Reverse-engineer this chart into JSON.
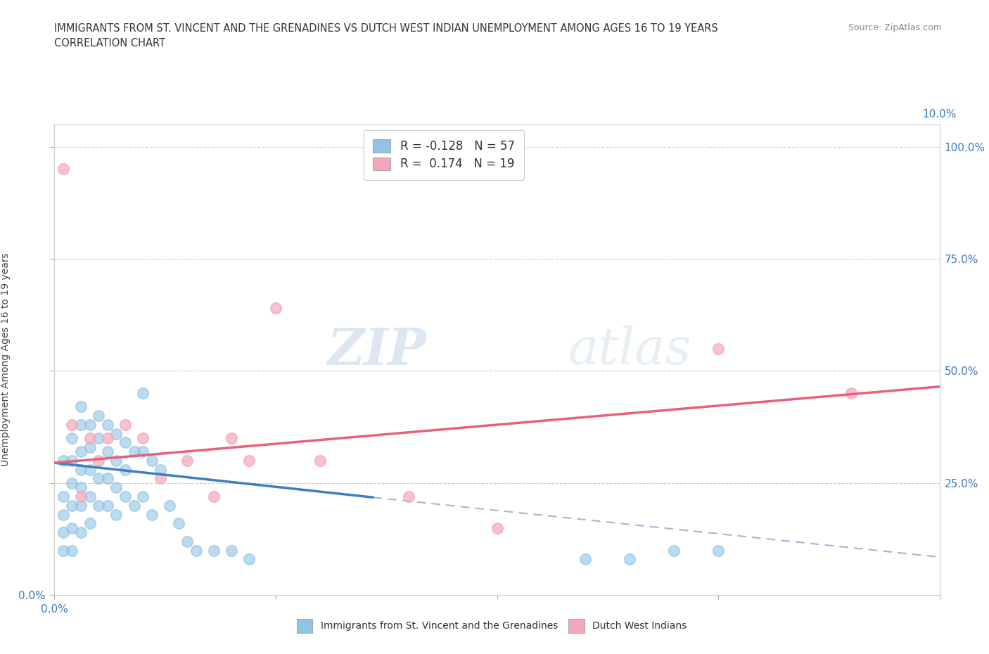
{
  "title_line1": "IMMIGRANTS FROM ST. VINCENT AND THE GRENADINES VS DUTCH WEST INDIAN UNEMPLOYMENT AMONG AGES 16 TO 19 YEARS",
  "title_line2": "CORRELATION CHART",
  "source_text": "Source: ZipAtlas.com",
  "ylabel": "Unemployment Among Ages 16 to 19 years",
  "xlim": [
    0.0,
    0.1
  ],
  "ylim": [
    0.0,
    1.05
  ],
  "xtick_vals": [
    0.0,
    0.025,
    0.05,
    0.075,
    0.1
  ],
  "xtick_labels": [
    "0.0%",
    "",
    "",
    "",
    ""
  ],
  "ytick_vals": [
    0.0,
    0.25,
    0.5,
    0.75,
    1.0
  ],
  "ytick_right_vals": [
    0.25,
    0.5,
    0.75,
    1.0
  ],
  "ytick_right_labels": [
    "25.0%",
    "50.0%",
    "75.0%",
    "100.0%"
  ],
  "blue_color": "#90c4e4",
  "pink_color": "#f4a7b9",
  "blue_line_color": "#3b7fc4",
  "pink_line_color": "#e8607a",
  "dashed_line_color": "#a0b8d0",
  "legend_R_blue": "R = -0.128",
  "legend_N_blue": "N = 57",
  "legend_R_pink": "R =  0.174",
  "legend_N_pink": "N = 19",
  "watermark_zip": "ZIP",
  "watermark_atlas": "atlas",
  "blue_scatter_x": [
    0.001,
    0.001,
    0.001,
    0.001,
    0.001,
    0.002,
    0.002,
    0.002,
    0.002,
    0.002,
    0.002,
    0.003,
    0.003,
    0.003,
    0.003,
    0.003,
    0.003,
    0.003,
    0.004,
    0.004,
    0.004,
    0.004,
    0.004,
    0.005,
    0.005,
    0.005,
    0.005,
    0.006,
    0.006,
    0.006,
    0.006,
    0.007,
    0.007,
    0.007,
    0.007,
    0.008,
    0.008,
    0.008,
    0.009,
    0.009,
    0.01,
    0.01,
    0.01,
    0.011,
    0.011,
    0.012,
    0.013,
    0.014,
    0.015,
    0.016,
    0.018,
    0.02,
    0.022,
    0.06,
    0.065,
    0.07,
    0.075
  ],
  "blue_scatter_y": [
    0.3,
    0.22,
    0.18,
    0.14,
    0.1,
    0.35,
    0.3,
    0.25,
    0.2,
    0.15,
    0.1,
    0.42,
    0.38,
    0.32,
    0.28,
    0.24,
    0.2,
    0.14,
    0.38,
    0.33,
    0.28,
    0.22,
    0.16,
    0.4,
    0.35,
    0.26,
    0.2,
    0.38,
    0.32,
    0.26,
    0.2,
    0.36,
    0.3,
    0.24,
    0.18,
    0.34,
    0.28,
    0.22,
    0.32,
    0.2,
    0.45,
    0.32,
    0.22,
    0.3,
    0.18,
    0.28,
    0.2,
    0.16,
    0.12,
    0.1,
    0.1,
    0.1,
    0.08,
    0.08,
    0.08,
    0.1,
    0.1
  ],
  "pink_scatter_x": [
    0.001,
    0.002,
    0.003,
    0.004,
    0.005,
    0.006,
    0.008,
    0.01,
    0.012,
    0.015,
    0.018,
    0.02,
    0.022,
    0.025,
    0.03,
    0.04,
    0.05,
    0.075,
    0.09
  ],
  "pink_scatter_y": [
    0.95,
    0.38,
    0.22,
    0.35,
    0.3,
    0.35,
    0.38,
    0.35,
    0.26,
    0.3,
    0.22,
    0.35,
    0.3,
    0.64,
    0.3,
    0.22,
    0.15,
    0.55,
    0.45
  ],
  "blue_line_x0": 0.0,
  "blue_line_x1": 0.036,
  "blue_line_y0": 0.295,
  "blue_line_y1": 0.218,
  "dash_line_x0": 0.036,
  "dash_line_x1": 0.1,
  "dash_line_y0": 0.218,
  "dash_line_y1": 0.085,
  "pink_line_x0": 0.0,
  "pink_line_x1": 0.1,
  "pink_line_y0": 0.295,
  "pink_line_y1": 0.465
}
